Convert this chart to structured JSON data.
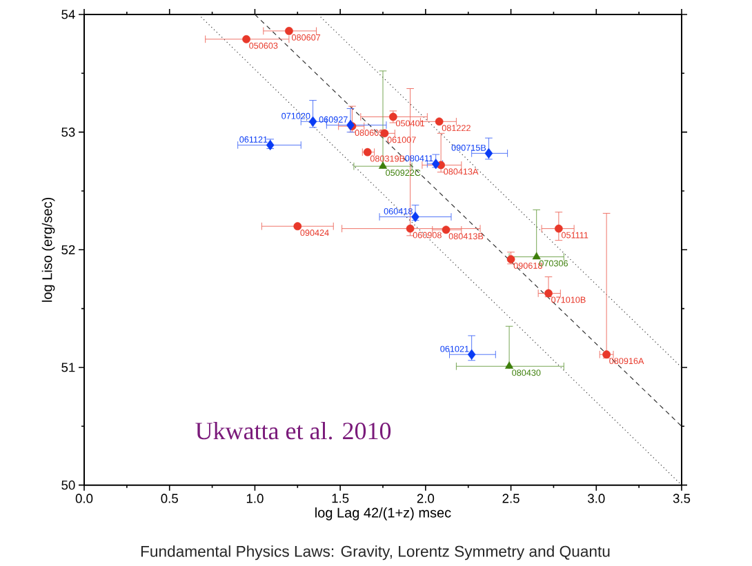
{
  "chart_data": {
    "type": "scatter",
    "xlabel": "log Lag 42/(1+z)  msec",
    "ylabel": "log Liso (erg/sec)",
    "xlim": [
      0,
      3.5
    ],
    "ylim": [
      50,
      54
    ],
    "xticks": [
      {
        "value": 0,
        "label": "0.0"
      },
      {
        "value": 0.5,
        "label": "0.5"
      },
      {
        "value": 1,
        "label": "1.0"
      },
      {
        "value": 1.5,
        "label": "1.5"
      },
      {
        "value": 2,
        "label": "2.0"
      },
      {
        "value": 2.5,
        "label": "2.5"
      },
      {
        "value": 3,
        "label": "3.0"
      },
      {
        "value": 3.5,
        "label": "3.5"
      }
    ],
    "yticks": [
      50,
      51,
      52,
      53,
      54
    ],
    "series": [
      {
        "type": "line",
        "color": "#333333",
        "line_style": "dotted",
        "x": [
          0.67,
          3.5
        ],
        "values": [
          54,
          50
        ]
      },
      {
        "type": "line",
        "color": "#333333",
        "line_style": "dashed",
        "x": [
          1.0,
          3.5
        ],
        "values": [
          54,
          50.5
        ]
      },
      {
        "type": "line",
        "color": "#333333",
        "line_style": "dotted",
        "x": [
          1.37,
          3.5
        ],
        "values": [
          54,
          51.0
        ]
      },
      {
        "color": "#e8382a",
        "marker": "circle",
        "x": [
          0.95,
          1.2,
          1.57,
          1.66,
          1.76,
          1.81,
          2.08,
          2.09,
          1.25,
          1.91,
          2.12,
          2.5,
          2.78,
          2.72,
          3.06
        ],
        "values": [
          53.79,
          53.86,
          53.05,
          52.83,
          52.99,
          53.13,
          53.09,
          52.72,
          52.2,
          52.18,
          52.17,
          51.92,
          52.18,
          51.63,
          51.11
        ],
        "xerrors": [
          [
            0.71,
            1.2
          ],
          [
            1.05,
            1.36
          ],
          [
            1.49,
            1.64
          ],
          [
            1.63,
            1.7
          ],
          [
            1.74,
            1.82
          ],
          [
            1.62,
            2.01
          ],
          [
            1.97,
            2.18
          ],
          [
            1.98,
            2.21
          ],
          [
            1.04,
            1.46
          ],
          [
            1.51,
            2.32
          ],
          [
            2.04,
            2.21
          ],
          null,
          [
            2.68,
            2.87
          ],
          [
            2.66,
            2.79
          ],
          [
            3.02,
            3.1
          ]
        ],
        "errors": [
          null,
          null,
          [
            53.0,
            53.22
          ],
          null,
          null,
          [
            53.08,
            53.18
          ],
          null,
          [
            52.66,
            52.99
          ],
          null,
          [
            52.12,
            53.37
          ],
          null,
          [
            51.88,
            51.98
          ],
          [
            52.08,
            52.32
          ],
          [
            51.6,
            51.77
          ],
          [
            51.08,
            52.31
          ]
        ]
      },
      {
        "color": "#0a3cf5",
        "marker": "diamond",
        "x": [
          1.34,
          1.56,
          1.09,
          2.06,
          2.37,
          1.94,
          2.27
        ],
        "values": [
          53.09,
          53.06,
          52.89,
          52.73,
          52.82,
          52.28,
          51.11
        ],
        "xerrors": [
          [
            1.27,
            1.42
          ],
          [
            1.42,
            1.77
          ],
          [
            0.9,
            1.27
          ],
          [
            2.01,
            2.1
          ],
          [
            2.27,
            2.48
          ],
          [
            1.73,
            2.15
          ],
          [
            2.14,
            2.41
          ]
        ],
        "errors": [
          [
            53.04,
            53.27
          ],
          [
            53.0,
            53.2
          ],
          [
            52.86,
            52.94
          ],
          [
            52.7,
            52.81
          ],
          [
            52.77,
            52.95
          ],
          [
            52.25,
            52.38
          ],
          [
            51.06,
            51.27
          ]
        ]
      },
      {
        "color": "#3d7f0a",
        "marker": "triangle",
        "x": [
          1.75,
          2.65,
          2.49
        ],
        "values": [
          52.71,
          51.94,
          51.01
        ],
        "xerrors": [
          [
            1.58,
            1.92
          ],
          [
            2.49,
            2.81
          ],
          [
            2.18,
            2.81
          ]
        ],
        "errors": [
          [
            52.71,
            53.52
          ],
          [
            51.94,
            52.34
          ],
          [
            51.01,
            51.35
          ]
        ]
      }
    ],
    "annotations": [
      "Ukwatta et al. 2010",
      "Fundamental Physics Laws: Gravity, Lorentz Symmetry and Quantu",
      {
        "text": "050603",
        "x": 0.95,
        "y": 53.79
      },
      {
        "text": "080607",
        "x": 1.2,
        "y": 53.86
      },
      {
        "text": "080605",
        "x": 1.57,
        "y": 53.05
      },
      {
        "text": "080319B",
        "x": 1.66,
        "y": 52.83
      },
      {
        "text": "061007",
        "x": 1.76,
        "y": 52.99
      },
      {
        "text": "050401",
        "x": 1.81,
        "y": 53.13
      },
      {
        "text": "081222",
        "x": 2.08,
        "y": 53.09
      },
      {
        "text": "080413A",
        "x": 2.09,
        "y": 52.72
      },
      {
        "text": "090424",
        "x": 1.25,
        "y": 52.2
      },
      {
        "text": "060908",
        "x": 1.91,
        "y": 52.18
      },
      {
        "text": "080413B",
        "x": 2.12,
        "y": 52.17
      },
      {
        "text": "090618",
        "x": 2.5,
        "y": 51.92
      },
      {
        "text": "051111",
        "x": 2.78,
        "y": 52.18
      },
      {
        "text": "071010B",
        "x": 2.72,
        "y": 51.63
      },
      {
        "text": "080916A",
        "x": 3.06,
        "y": 51.11
      },
      {
        "text": "071020",
        "x": 1.34,
        "y": 53.09
      },
      {
        "text": "060927",
        "x": 1.56,
        "y": 53.06
      },
      {
        "text": "061121",
        "x": 1.09,
        "y": 52.89
      },
      {
        "text": "080411",
        "x": 2.06,
        "y": 52.73
      },
      {
        "text": "090715B",
        "x": 2.37,
        "y": 52.82
      },
      {
        "text": "060418",
        "x": 1.94,
        "y": 52.28
      },
      {
        "text": "061021",
        "x": 2.27,
        "y": 51.11
      },
      {
        "text": "050922C",
        "x": 1.75,
        "y": 52.71
      },
      {
        "text": "070306",
        "x": 2.65,
        "y": 51.94
      },
      {
        "text": "080430",
        "x": 2.49,
        "y": 51.01
      }
    ]
  }
}
